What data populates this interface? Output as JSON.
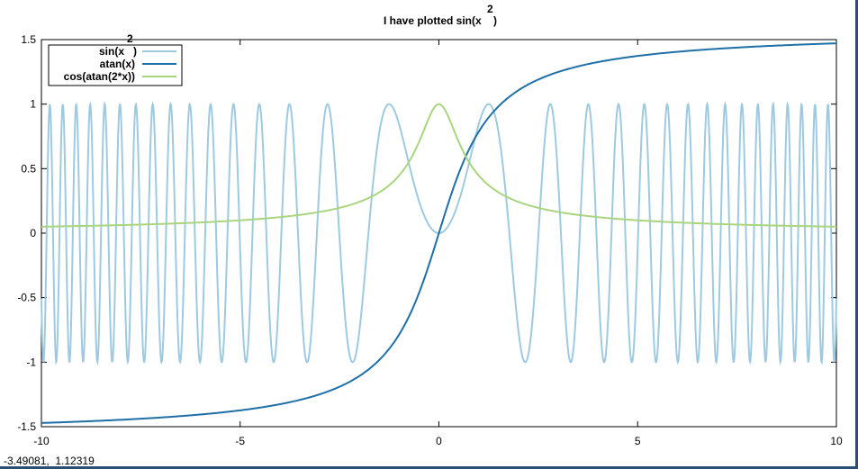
{
  "window": {
    "status_readout": "-3.49081,  1.12319"
  },
  "chart_data": {
    "type": "line",
    "title": "I have plotted sin(x",
    "title_superscript": "2",
    "title_suffix": ")",
    "xlim": [
      -10,
      10
    ],
    "ylim": [
      -1.5,
      1.5
    ],
    "x_ticks": [
      -10,
      -5,
      0,
      5,
      10
    ],
    "y_ticks": [
      -1.5,
      -1,
      -0.5,
      0,
      0.5,
      1,
      1.5
    ],
    "x_tick_labels": [
      "-10",
      "-5",
      "0",
      "5",
      "10"
    ],
    "y_tick_labels": [
      "-1.5",
      "-1",
      "-0.5",
      "0",
      "0.5",
      "1",
      "1.5"
    ],
    "grid": false,
    "legend_position": "top-left",
    "series": [
      {
        "name": "sin(x",
        "name_superscript": "2",
        "name_suffix": ")",
        "function": "sin(x^2)",
        "color": "#9ecae1",
        "samples": 2000
      },
      {
        "name": "atan(x)",
        "function": "atan(x)",
        "color": "#1f6fa8",
        "samples": 400
      },
      {
        "name": "cos(atan(2*x))",
        "function": "cos(atan(2*x))",
        "color": "#a8d57e",
        "samples": 400
      }
    ]
  }
}
